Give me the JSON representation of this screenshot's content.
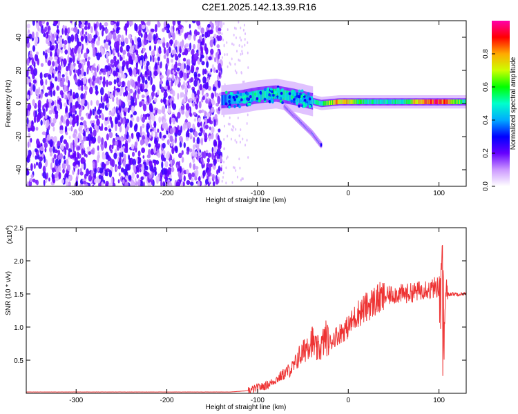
{
  "title": "C2E1.2025.142.13.39.R16",
  "chart_data": [
    {
      "type": "heatmap",
      "title": "C2E1.2025.142.13.39.R16",
      "xlabel": "Height of straight line (km)",
      "ylabel": "Frequency (Hz)",
      "xlim": [
        -355,
        130
      ],
      "ylim": [
        -50,
        50
      ],
      "x_ticks": [
        "-300",
        "-200",
        "-100",
        "0",
        "100"
      ],
      "y_ticks": [
        "40",
        "20",
        "0",
        "-20",
        "-40"
      ],
      "colorbar": {
        "label": "Normalized spectral amplitude",
        "range": [
          0,
          1
        ],
        "ticks": [
          "0.0",
          "0.2",
          "0.4",
          "0.6",
          "0.8"
        ],
        "colors": [
          "#ffffff",
          "#cc99ff",
          "#6600ff",
          "#0000ff",
          "#00aaff",
          "#00ffcc",
          "#00ff00",
          "#ccff00",
          "#ffaa00",
          "#ff0000",
          "#ff00aa"
        ]
      },
      "noise_region": {
        "x_from": -355,
        "x_to": -140,
        "level": 0.15
      },
      "ridge": [
        {
          "x": -140,
          "f": 2,
          "a": 0.35
        },
        {
          "x": -120,
          "f": 3,
          "a": 0.45
        },
        {
          "x": -100,
          "f": 5,
          "a": 0.5
        },
        {
          "x": -80,
          "f": 6,
          "a": 0.5
        },
        {
          "x": -60,
          "f": 4,
          "a": 0.45
        },
        {
          "x": -45,
          "f": 2,
          "a": 0.4
        },
        {
          "x": -30,
          "f": 0,
          "a": 0.55
        },
        {
          "x": -10,
          "f": 1,
          "a": 0.8
        },
        {
          "x": 20,
          "f": 1,
          "a": 0.5
        },
        {
          "x": 60,
          "f": 1,
          "a": 0.5
        },
        {
          "x": 80,
          "f": 1,
          "a": 0.85
        },
        {
          "x": 100,
          "f": 1,
          "a": 0.9
        },
        {
          "x": 130,
          "f": 1,
          "a": 0.5
        }
      ],
      "branch": [
        {
          "x": -70,
          "f": -2
        },
        {
          "x": -55,
          "f": -10
        },
        {
          "x": -40,
          "f": -18
        },
        {
          "x": -30,
          "f": -25
        }
      ]
    },
    {
      "type": "line",
      "xlabel": "Height of straight line (km)",
      "ylabel": "SNR (10 * v/v)",
      "y_multiplier": "(x10",
      "y_multiplier_exp": "4",
      "xlim": [
        -355,
        130
      ],
      "ylim": [
        0,
        2.5
      ],
      "x_ticks": [
        "-300",
        "-200",
        "-100",
        "0",
        "100"
      ],
      "y_ticks": [
        "0.5",
        "1.0",
        "1.5",
        "2.0",
        "2.5"
      ],
      "series": [
        {
          "color": "#ee3333",
          "x": [
            -355,
            -200,
            -130,
            -110,
            -100,
            -90,
            -80,
            -70,
            -60,
            -55,
            -50,
            -45,
            -40,
            -35,
            -30,
            -25,
            -20,
            -15,
            -10,
            -5,
            0,
            10,
            20,
            30,
            40,
            50,
            60,
            70,
            80,
            85,
            90,
            95,
            100,
            102,
            104,
            106,
            108,
            110,
            115,
            120,
            130
          ],
          "y": [
            0.02,
            0.02,
            0.02,
            0.04,
            0.08,
            0.12,
            0.2,
            0.3,
            0.4,
            0.55,
            0.6,
            0.75,
            0.8,
            0.65,
            0.7,
            0.85,
            0.75,
            0.85,
            0.9,
            0.95,
            1.0,
            1.2,
            1.3,
            1.4,
            1.45,
            1.5,
            1.5,
            1.52,
            1.55,
            1.6,
            1.55,
            1.6,
            1.6,
            1.8,
            2.3,
            1.0,
            1.6,
            1.5,
            1.5,
            1.5,
            1.5
          ]
        }
      ]
    }
  ]
}
